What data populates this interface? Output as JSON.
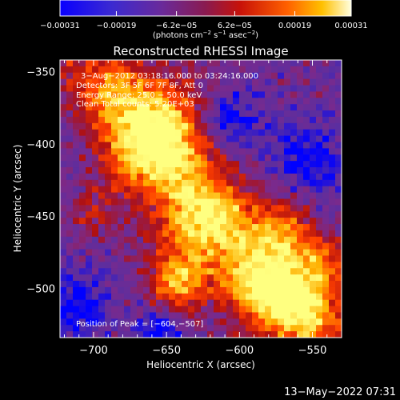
{
  "chart_data": {
    "type": "heatmap",
    "title": "Reconstructed RHESSI Image",
    "xlabel": "Heliocentric X (arcsec)",
    "ylabel": "Heliocentric Y (arcsec)",
    "xlim": [
      -723,
      -530
    ],
    "ylim": [
      -534,
      -342
    ],
    "xticks": [
      {
        "value": -700,
        "label": "−700"
      },
      {
        "value": -650,
        "label": "−650"
      },
      {
        "value": -600,
        "label": "−600"
      },
      {
        "value": -550,
        "label": "−550"
      }
    ],
    "yticks": [
      {
        "value": -350,
        "label": "−350"
      },
      {
        "value": -400,
        "label": "−400"
      },
      {
        "value": -450,
        "label": "−450"
      },
      {
        "value": -500,
        "label": "−500"
      }
    ],
    "colorbar": {
      "min": -0.00031,
      "max": 0.00031,
      "ticks": [
        {
          "value": -0.00031,
          "label": "−0.00031"
        },
        {
          "value": -0.00019,
          "label": "−0.00019"
        },
        {
          "value": -6.2e-05,
          "label": "−6.2e−05"
        },
        {
          "value": 6.2e-05,
          "label": "6.2e−05"
        },
        {
          "value": 0.00019,
          "label": "0.00019"
        },
        {
          "value": 0.00031,
          "label": "0.00031"
        }
      ],
      "unit_main": "(photons cm",
      "unit_sup1": "−2",
      "unit_mid": " s",
      "unit_sup2": "−1",
      "unit_end": " asec",
      "unit_sup3": "−2",
      "unit_close": ")"
    },
    "annotations": {
      "time": "3−Aug−2012 03:18:16.000 to 03:24:16.000",
      "detectors": "Detectors: 3F 5F 6F 7F 8F, Att 0",
      "energy": "Energy Range: 25.0 − 50.0 keV",
      "clean": "Clean     Total counts: 5.20E+03",
      "peak": "Position of Peak = [−604,−507]"
    },
    "peak": {
      "x": -604,
      "y": -507
    },
    "colormap_stops": [
      "#0000ff",
      "#5a2ea0",
      "#7a2a8c",
      "#b01010",
      "#ff4000",
      "#ffb000",
      "#ffff80"
    ]
  },
  "footer": {
    "timestamp": "13−May−2022 07:31"
  }
}
